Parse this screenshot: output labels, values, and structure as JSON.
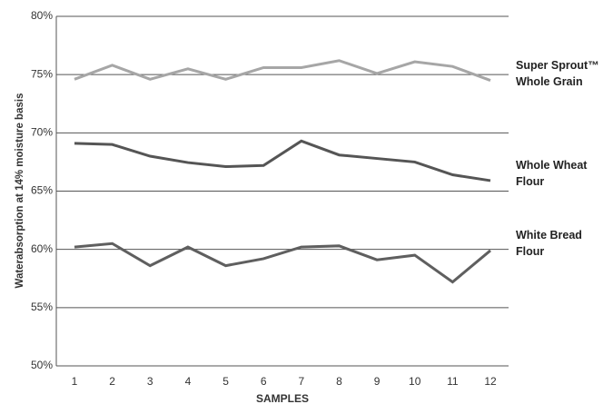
{
  "chart_data": {
    "type": "line",
    "y_label": "Waterabsorption at 14% moisture basis",
    "x_label": "SAMPLES",
    "categories": [
      "1",
      "2",
      "3",
      "4",
      "5",
      "6",
      "7",
      "8",
      "9",
      "10",
      "11",
      "12"
    ],
    "series": [
      {
        "name": "Super Sprout™ Whole Grain",
        "color": "#a6a6a6",
        "values": [
          74.6,
          75.8,
          74.6,
          75.5,
          74.6,
          75.6,
          75.6,
          76.2,
          75.1,
          76.1,
          75.7,
          74.5
        ]
      },
      {
        "name": "Whole Wheat Flour",
        "color": "#555555",
        "values": [
          69.1,
          69.0,
          68.0,
          67.45,
          67.1,
          67.2,
          69.3,
          68.1,
          67.8,
          67.5,
          66.4,
          65.9
        ]
      },
      {
        "name": "White Bread Flour",
        "color": "#5f5f5f",
        "values": [
          60.2,
          60.5,
          58.6,
          60.2,
          58.6,
          59.2,
          60.2,
          60.3,
          59.1,
          59.5,
          57.2,
          59.9
        ]
      }
    ],
    "ylim": [
      50,
      80
    ],
    "yticks": [
      {
        "value": 50,
        "label": "50%"
      },
      {
        "value": 55,
        "label": "55%"
      },
      {
        "value": 60,
        "label": "60%"
      },
      {
        "value": 65,
        "label": "65%"
      },
      {
        "value": 70,
        "label": "70%"
      },
      {
        "value": 75,
        "label": "75%"
      },
      {
        "value": 80,
        "label": "80%"
      }
    ],
    "grid": true
  }
}
